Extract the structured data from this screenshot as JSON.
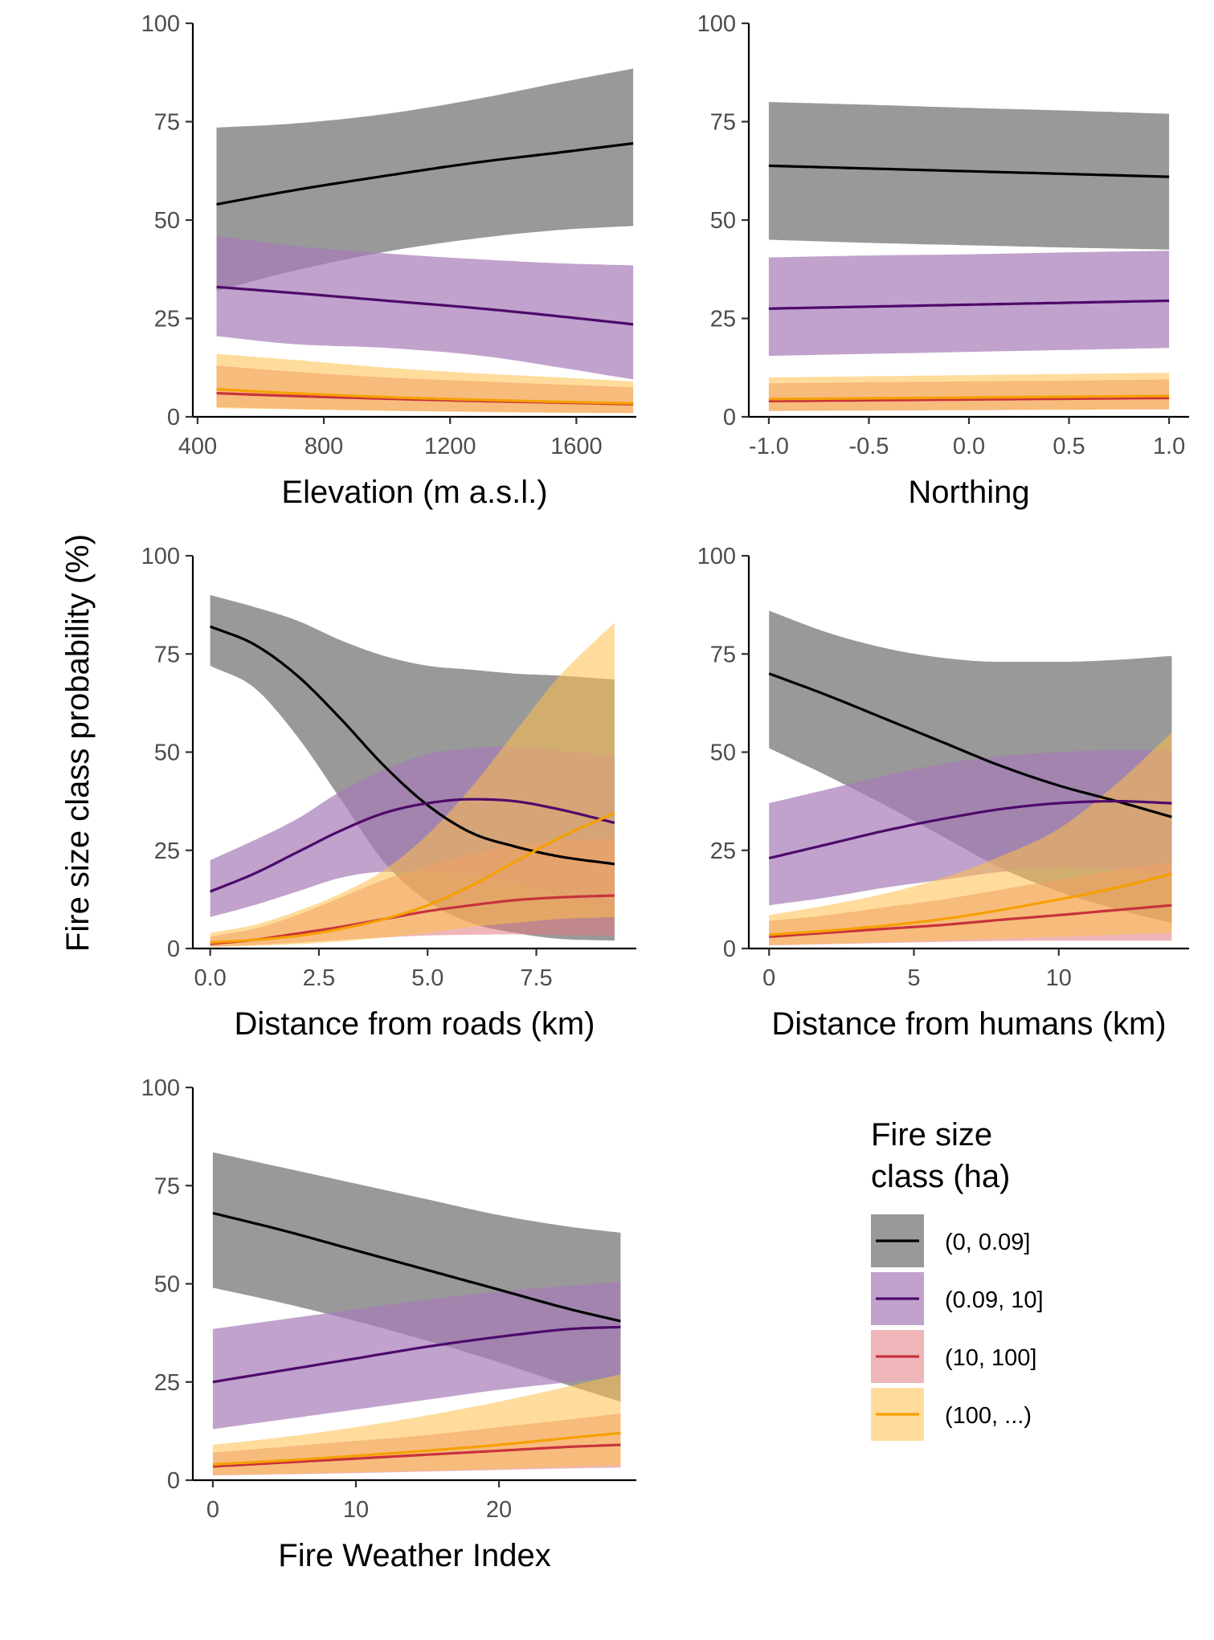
{
  "figure": {
    "ylabel": "Fire size class probability (%)",
    "legend_title_line1": "Fire size",
    "legend_title_line2": "class (ha)"
  },
  "series_styles": [
    {
      "name": "(0, 0.09]",
      "line": "#000000",
      "fill": "#808080"
    },
    {
      "name": "(0.09, 10]",
      "line": "#4d0a6a",
      "fill": "#a57ab7"
    },
    {
      "name": "(10, 100]",
      "line": "#c8323c",
      "fill": "#e07a80"
    },
    {
      "name": "(100, ...)",
      "line": "#f5a000",
      "fill": "#ffc04a"
    }
  ],
  "chart_data": [
    {
      "type": "line",
      "xlabel": "Elevation (m a.s.l.)",
      "ylabel": "Fire size class probability (%)",
      "xlim": [
        385,
        1790
      ],
      "ylim": [
        0,
        100
      ],
      "xticks": [
        400,
        800,
        1200,
        1600
      ],
      "xtick_labels": [
        "400",
        "800",
        "1200",
        "1600"
      ],
      "yticks": [
        0,
        25,
        50,
        75,
        100
      ],
      "ytick_labels": [
        "0",
        "25",
        "50",
        "75",
        "100"
      ],
      "x": [
        460,
        700,
        1000,
        1300,
        1550,
        1780
      ],
      "series": [
        {
          "name": "(0, 0.09]",
          "mean": [
            54,
            57.5,
            61.3,
            64.8,
            67.2,
            69.5
          ],
          "lower": [
            32,
            37,
            42,
            45.5,
            47.5,
            48.5
          ],
          "upper": [
            73.5,
            74.5,
            77,
            81,
            85,
            88.5
          ]
        },
        {
          "name": "(0.09, 10]",
          "mean": [
            33,
            31.5,
            29.5,
            27.5,
            25.5,
            23.5
          ],
          "lower": [
            20.5,
            18.5,
            17.5,
            15.5,
            12.5,
            9.5
          ],
          "upper": [
            46,
            43.5,
            41.5,
            40,
            39,
            38.5
          ]
        },
        {
          "name": "(10, 100]",
          "mean": [
            6,
            5.3,
            4.6,
            4,
            3.6,
            3.2
          ],
          "lower": [
            2.5,
            2,
            1.6,
            1.3,
            1.1,
            1
          ],
          "upper": [
            13,
            11.5,
            10,
            9,
            8.2,
            7.5
          ]
        },
        {
          "name": "(100, ...)",
          "mean": [
            7,
            6,
            5,
            4.3,
            3.8,
            3.4
          ],
          "lower": [
            2.2,
            1.9,
            1.5,
            1.2,
            1,
            0.9
          ],
          "upper": [
            16,
            14.5,
            12.5,
            11,
            10,
            9
          ]
        }
      ]
    },
    {
      "type": "line",
      "xlabel": "Northing",
      "ylabel": "Fire size class probability (%)",
      "xlim": [
        -1.1,
        1.1
      ],
      "ylim": [
        0,
        100
      ],
      "xticks": [
        -1,
        -0.5,
        0,
        0.5,
        1
      ],
      "xtick_labels": [
        "-1.0",
        "-0.5",
        "0.0",
        "0.5",
        "1.0"
      ],
      "yticks": [
        0,
        25,
        50,
        75,
        100
      ],
      "ytick_labels": [
        "0",
        "25",
        "50",
        "75",
        "100"
      ],
      "x": [
        -1,
        -0.5,
        0,
        0.5,
        1
      ],
      "series": [
        {
          "name": "(0, 0.09]",
          "mean": [
            63.8,
            63.1,
            62.4,
            61.7,
            61
          ],
          "lower": [
            45,
            44.2,
            43.6,
            43,
            42.5
          ],
          "upper": [
            80,
            79.3,
            78.5,
            77.8,
            77
          ]
        },
        {
          "name": "(0.09, 10]",
          "mean": [
            27.5,
            28,
            28.5,
            29,
            29.5
          ],
          "lower": [
            15.5,
            16,
            16.5,
            17,
            17.5
          ],
          "upper": [
            40.5,
            41,
            41.3,
            41.8,
            42.2
          ]
        },
        {
          "name": "(10, 100]",
          "mean": [
            4,
            4.2,
            4.4,
            4.6,
            4.8
          ],
          "lower": [
            1.5,
            1.6,
            1.7,
            1.8,
            1.9
          ],
          "upper": [
            8.5,
            8.8,
            9,
            9.2,
            9.5
          ]
        },
        {
          "name": "(100, ...)",
          "mean": [
            4.5,
            4.7,
            4.9,
            5.1,
            5.3
          ],
          "lower": [
            1.5,
            1.6,
            1.7,
            1.8,
            1.9
          ],
          "upper": [
            10,
            10.3,
            10.6,
            10.9,
            11.2
          ]
        }
      ]
    },
    {
      "type": "line",
      "xlabel": "Distance from roads (km)",
      "ylabel": "Fire size class probability (%)",
      "xlim": [
        -0.4,
        9.8
      ],
      "ylim": [
        0,
        100
      ],
      "xticks": [
        0,
        2.5,
        5,
        7.5
      ],
      "xtick_labels": [
        "0.0",
        "2.5",
        "5.0",
        "7.5"
      ],
      "yticks": [
        0,
        25,
        50,
        75,
        100
      ],
      "ytick_labels": [
        "0",
        "25",
        "50",
        "75",
        "100"
      ],
      "x": [
        0,
        1,
        2,
        3,
        4,
        5,
        6,
        7,
        8,
        9.3
      ],
      "series": [
        {
          "name": "(0, 0.09]",
          "mean": [
            82,
            77.5,
            69.5,
            58.5,
            46.5,
            36.5,
            29.5,
            26,
            23.5,
            21.5
          ],
          "lower": [
            72,
            66.5,
            54,
            38,
            22,
            12,
            6.5,
            4,
            2.5,
            2
          ],
          "upper": [
            90,
            87,
            83.5,
            78.5,
            74.5,
            72,
            71,
            70,
            69.5,
            68.5
          ]
        },
        {
          "name": "(0.09, 10]",
          "mean": [
            14.5,
            19,
            24.5,
            30,
            34.5,
            37,
            38,
            37.5,
            35.5,
            32
          ],
          "lower": [
            8,
            11,
            14.5,
            18,
            19.5,
            19.5,
            18.5,
            16.5,
            13.5,
            10
          ],
          "upper": [
            22.5,
            27.5,
            33,
            40,
            45.5,
            49.5,
            51,
            51.5,
            50.5,
            49
          ]
        },
        {
          "name": "(10, 100]",
          "mean": [
            1.2,
            2.2,
            3.8,
            5.5,
            7.5,
            9.5,
            11,
            12.3,
            13,
            13.5
          ],
          "lower": [
            0.5,
            0.9,
            1.5,
            2.2,
            2.8,
            3.3,
            3.5,
            3.6,
            3.4,
            3.2
          ],
          "upper": [
            3,
            5,
            8.5,
            13,
            17.5,
            21,
            24,
            26.5,
            27.5,
            28
          ]
        },
        {
          "name": "(100, ...)",
          "mean": [
            1.5,
            2.2,
            3.2,
            5,
            7.5,
            11,
            16,
            22,
            28,
            34.5
          ],
          "lower": [
            0.4,
            0.7,
            1.1,
            1.8,
            2.8,
            4,
            5.5,
            6.5,
            7.5,
            8
          ],
          "upper": [
            4,
            6,
            9.5,
            14,
            20,
            29,
            41,
            55,
            69,
            83
          ]
        }
      ]
    },
    {
      "type": "line",
      "xlabel": "Distance from humans (km)",
      "ylabel": "Fire size class probability (%)",
      "xlim": [
        -0.7,
        14.5
      ],
      "ylim": [
        0,
        100
      ],
      "xticks": [
        0,
        5,
        10
      ],
      "xtick_labels": [
        "0",
        "5",
        "10"
      ],
      "yticks": [
        0,
        25,
        50,
        75,
        100
      ],
      "ytick_labels": [
        "0",
        "25",
        "50",
        "75",
        "100"
      ],
      "x": [
        0,
        2,
        4,
        6,
        8,
        10,
        12,
        13.9
      ],
      "series": [
        {
          "name": "(0, 0.09]",
          "mean": [
            70,
            64.5,
            58.5,
            52.5,
            46.5,
            41.5,
            37.5,
            33.5
          ],
          "lower": [
            51,
            44,
            36.5,
            28.5,
            20.5,
            14.5,
            10,
            6.5
          ],
          "upper": [
            86,
            80.5,
            76.5,
            74,
            73,
            73,
            73.5,
            74.5
          ]
        },
        {
          "name": "(0.09, 10]",
          "mean": [
            23,
            26.5,
            30,
            33,
            35.5,
            37,
            37.5,
            37
          ],
          "lower": [
            11,
            13,
            15.5,
            17.5,
            19.5,
            20.5,
            20,
            18.5
          ],
          "upper": [
            37,
            40.5,
            44,
            47,
            49,
            50,
            50.5,
            50.5
          ]
        },
        {
          "name": "(10, 100]",
          "mean": [
            3,
            4,
            5,
            6,
            7.3,
            8.5,
            9.8,
            11
          ],
          "lower": [
            0.8,
            1.1,
            1.4,
            1.7,
            1.9,
            2,
            2,
            2
          ],
          "upper": [
            7,
            8.5,
            10.5,
            12.5,
            15,
            17.5,
            20,
            22
          ]
        },
        {
          "name": "(100, ...)",
          "mean": [
            3.5,
            4.5,
            5.8,
            7.5,
            9.8,
            12.5,
            15.5,
            19
          ],
          "lower": [
            0.9,
            1.2,
            1.6,
            2,
            2.5,
            3,
            3.5,
            4
          ],
          "upper": [
            8.5,
            11,
            14,
            18,
            23.5,
            30.5,
            42,
            55
          ]
        }
      ]
    },
    {
      "type": "line",
      "xlabel": "Fire Weather Index",
      "ylabel": "Fire size class probability (%)",
      "xlim": [
        -1.4,
        29.6
      ],
      "ylim": [
        0,
        100
      ],
      "xticks": [
        0,
        10,
        20
      ],
      "xtick_labels": [
        "0",
        "10",
        "20"
      ],
      "yticks": [
        0,
        25,
        50,
        75,
        100
      ],
      "ytick_labels": [
        "0",
        "25",
        "50",
        "75",
        "100"
      ],
      "x": [
        0,
        5,
        10,
        15,
        20,
        25,
        28.5
      ],
      "series": [
        {
          "name": "(0, 0.09]",
          "mean": [
            68,
            63.5,
            58.5,
            53.5,
            48.5,
            43.5,
            40.5
          ],
          "lower": [
            49,
            45,
            40.5,
            35.5,
            30,
            24,
            20
          ],
          "upper": [
            83.5,
            79.5,
            75.5,
            71.5,
            67.5,
            64.5,
            63
          ]
        },
        {
          "name": "(0.09, 10]",
          "mean": [
            25,
            28,
            31,
            34,
            36.5,
            38.5,
            39
          ],
          "lower": [
            13,
            15.5,
            18,
            20.5,
            23,
            25,
            26.5
          ],
          "upper": [
            38.5,
            41,
            43.5,
            46,
            48,
            49.5,
            50.5
          ]
        },
        {
          "name": "(10, 100]",
          "mean": [
            3.5,
            4.5,
            5.5,
            6.5,
            7.5,
            8.5,
            9
          ],
          "lower": [
            1.2,
            1.5,
            1.8,
            2.2,
            2.6,
            3,
            3.2
          ],
          "upper": [
            7,
            8.5,
            10,
            11.5,
            13.5,
            15.5,
            17
          ]
        },
        {
          "name": "(100, ...)",
          "mean": [
            4,
            5,
            6.2,
            7.5,
            9,
            10.8,
            12
          ],
          "lower": [
            1.3,
            1.6,
            2,
            2.4,
            2.9,
            3.4,
            3.8
          ],
          "upper": [
            9,
            11,
            13.5,
            16.5,
            20,
            24,
            27
          ]
        }
      ]
    }
  ]
}
